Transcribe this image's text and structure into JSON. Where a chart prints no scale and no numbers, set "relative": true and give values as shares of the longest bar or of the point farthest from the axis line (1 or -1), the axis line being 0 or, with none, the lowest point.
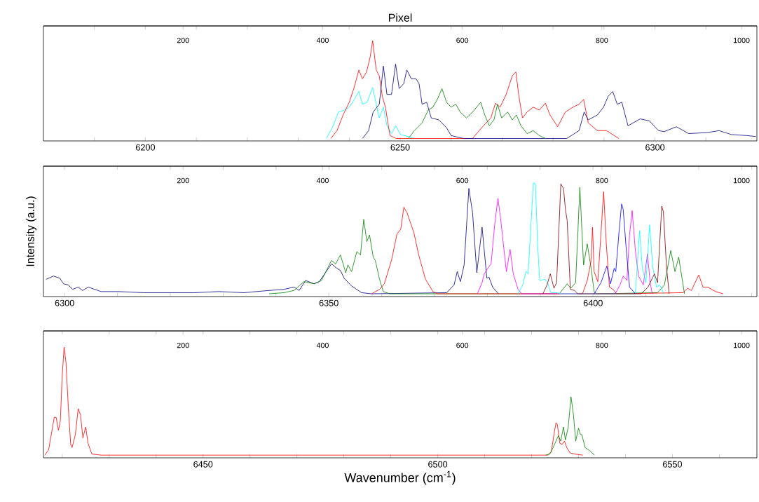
{
  "chart_data": [
    {
      "type": "line",
      "relative": true,
      "x2label": "Pixel",
      "xlim": [
        6180,
        6320
      ],
      "xticks": [
        {
          "value": 6190,
          "label": null
        },
        6200,
        {
          "value": 6210,
          "label": null
        },
        {
          "value": 6220,
          "label": null
        },
        {
          "value": 6230,
          "label": null
        },
        {
          "value": 6240,
          "label": null
        },
        6250,
        {
          "value": 6260,
          "label": null
        },
        {
          "value": 6270,
          "label": null
        },
        {
          "value": 6280,
          "label": null
        },
        {
          "value": 6290,
          "label": null
        },
        6300,
        {
          "value": 6310,
          "label": null
        }
      ],
      "x2lim": [
        0,
        1022
      ],
      "x2ticks": [
        200,
        400,
        600,
        800,
        1000
      ],
      "series": [
        {
          "color": "#00ffff",
          "x": [
            6235.5,
            6236.7,
            6237.9,
            6239.1,
            6240.0,
            6240.9,
            6241.9,
            6242.6,
            6243.5,
            6244.6,
            6245.3,
            6245.9,
            6246.7,
            6247.4,
            6248.3,
            6249.1,
            6250.1,
            6251.6,
            6252.8
          ],
          "values": [
            0,
            0.11,
            0.27,
            0.29,
            0.32,
            0.39,
            0.48,
            0.35,
            0.37,
            0.52,
            0.35,
            0.21,
            0.32,
            0.13,
            0.05,
            0.13,
            0.04,
            0.02,
            0
          ]
        },
        {
          "color": "#ff0000",
          "x": [
            6236.4,
            6237.6,
            6238.8,
            6240.0,
            6240.9,
            6241.9,
            6242.6,
            6243.4,
            6244.1,
            6244.6,
            6245.3,
            6245.9,
            6246.5,
            6247.1,
            6248.0,
            6249.2,
            6264.2,
            6266.0,
            6267.8,
            6268.7,
            6269.6,
            6270.8,
            6272.0,
            6272.7,
            6273.3,
            6274.0,
            6274.9,
            6276.1,
            6277.3,
            6278.5,
            6279.4,
            6280.9,
            6282.4,
            6283.9,
            6285.1,
            6286.0,
            6286.9,
            6288.7,
            6290.5,
            6292.9
          ],
          "values": [
            0,
            0.08,
            0.24,
            0.37,
            0.51,
            0.7,
            0.61,
            0.68,
            0.83,
            1,
            0.7,
            0.64,
            0.43,
            0.32,
            0.03,
            0,
            0,
            0.11,
            0.21,
            0.36,
            0.32,
            0.45,
            0.64,
            0.68,
            0.43,
            0.21,
            0.27,
            0.32,
            0.29,
            0.36,
            0.24,
            0.12,
            0.27,
            0.32,
            0.35,
            0.4,
            0.16,
            0.08,
            0.08,
            0
          ]
        },
        {
          "color": "#000080",
          "x": [
            6242.6,
            6243.8,
            6244.7,
            6245.9,
            6246.7,
            6247.4,
            6248.3,
            6249.1,
            6249.8,
            6250.7,
            6251.3,
            6252.2,
            6253.1,
            6253.7,
            6254.3,
            6255.2,
            6256.1,
            6257.6,
            6259.1,
            6260.0,
            6262.4,
            6282.7,
            6285.1,
            6286.1,
            6286.9,
            6288.7,
            6289.9,
            6290.8,
            6291.7,
            6292.6,
            6293.5,
            6294.7,
            6297.1,
            6298.9,
            6300.7,
            6301.8,
            6304.2,
            6306.6,
            6310.2,
            6312.6,
            6315.0,
            6318.0,
            6319.8
          ],
          "values": [
            0,
            0.08,
            0.27,
            0.35,
            0.74,
            0.45,
            0.45,
            0.76,
            0.51,
            0.56,
            0.7,
            0.61,
            0.61,
            0.56,
            0.35,
            0.37,
            0.21,
            0.19,
            0.11,
            0.03,
            0,
            0,
            0.08,
            0.27,
            0.19,
            0.24,
            0.32,
            0.43,
            0.48,
            0.35,
            0.37,
            0.13,
            0.2,
            0.18,
            0.08,
            0.07,
            0.12,
            0.05,
            0.06,
            0.08,
            0.04,
            0.03,
            0.02
          ]
        },
        {
          "color": "#008000",
          "x": [
            6251.6,
            6252.8,
            6254.3,
            6255.5,
            6256.4,
            6257.3,
            6258.2,
            6259.1,
            6260.0,
            6260.9,
            6261.8,
            6263.0,
            6264.2,
            6265.8,
            6266.6,
            6267.5,
            6268.4,
            6269.1,
            6269.9,
            6271.1,
            6272.0,
            6272.8,
            6273.7,
            6274.9,
            6276.1,
            6277.3,
            6278.5
          ],
          "values": [
            0,
            0.08,
            0.16,
            0.29,
            0.32,
            0.4,
            0.51,
            0.37,
            0.32,
            0.35,
            0.27,
            0.21,
            0.27,
            0.37,
            0.24,
            0.13,
            0.19,
            0.35,
            0.21,
            0.27,
            0.19,
            0.24,
            0.13,
            0.05,
            0.08,
            0.03,
            0
          ]
        }
      ]
    },
    {
      "type": "line",
      "relative": true,
      "ylabel": "Intensity (a.u.)",
      "xlim": [
        6296,
        6431
      ],
      "xticks": [
        6300,
        {
          "value": 6310,
          "label": null
        },
        {
          "value": 6320,
          "label": null
        },
        {
          "value": 6330,
          "label": null
        },
        {
          "value": 6340,
          "label": null
        },
        6350,
        {
          "value": 6360,
          "label": null
        },
        {
          "value": 6370,
          "label": null
        },
        {
          "value": 6380,
          "label": null
        },
        {
          "value": 6390,
          "label": null
        },
        6400,
        {
          "value": 6410,
          "label": null
        },
        {
          "value": 6420,
          "label": null
        },
        {
          "value": 6430,
          "label": null
        }
      ],
      "x2lim": [
        0,
        1022
      ],
      "x2ticks": [
        200,
        400,
        600,
        800,
        1000
      ],
      "series": [
        {
          "color": "#000080",
          "x": [
            6296.5,
            6297.9,
            6299.1,
            6299.8,
            6300.7,
            6301.5,
            6302.6,
            6303.4,
            6304.5,
            6306.9,
            6310.2,
            6315.0,
            6319.7,
            6324.5,
            6329.2,
            6333.9,
            6338.7,
            6341.5,
            6343.4,
            6344.4,
            6345.6,
            6347.2,
            6348.2,
            6350.5,
            6351.5,
            6352.2,
            6352.9,
            6354.3,
            6356.2,
            6358.1,
            6372.3,
            6373.7,
            6374.3,
            6374.9,
            6375.6,
            6376.5,
            6377.2,
            6378.0,
            6379.0,
            6379.9,
            6380.3,
            6381.0,
            6382.1
          ],
          "values": [
            0.13,
            0.16,
            0.14,
            0.09,
            0.08,
            0.04,
            0.06,
            0.03,
            0.06,
            0.02,
            0.02,
            0.01,
            0.01,
            0.01,
            0.02,
            0.01,
            0.03,
            0.04,
            0.06,
            0.03,
            0.12,
            0.09,
            0.11,
            0.27,
            0.23,
            0.21,
            0.14,
            0.07,
            0.01,
            0,
            0.01,
            0.08,
            0.2,
            0.11,
            0.26,
            0.95,
            0.73,
            0.19,
            0.6,
            0.14,
            0.15,
            0.06,
            0
          ]
        },
        {
          "color": "#008000",
          "x": [
            6338.7,
            6341.5,
            6343.4,
            6345.3,
            6347.2,
            6348.6,
            6350.5,
            6351.3,
            6352.2,
            6353.2,
            6353.6,
            6354.3,
            6355.3,
            6356.0,
            6356.6,
            6357.2,
            6357.7,
            6358.4,
            6358.8,
            6359.6,
            6360.3,
            6361.5,
            6393.6,
            6395.1,
            6395.8,
            6396.7,
            6397.5,
            6398.2,
            6398.9,
            6399.6,
            6400.2,
            6400.7,
            6412.2,
            6413.5,
            6414.7,
            6415.5,
            6416.2,
            6417.3
          ],
          "values": [
            0,
            0.01,
            0.03,
            0.11,
            0.09,
            0.12,
            0.3,
            0.27,
            0.35,
            0.19,
            0.26,
            0.2,
            0.38,
            0.35,
            0.67,
            0.47,
            0.53,
            0.33,
            0.3,
            0.13,
            0.02,
            0,
            0,
            0.09,
            0.05,
            0.1,
            0.96,
            0.26,
            0.45,
            0.24,
            0.02,
            0,
            0.01,
            0.08,
            0.39,
            0.2,
            0.33,
            0
          ]
        },
        {
          "color": "#ff0000",
          "x": [
            6358.1,
            6359.6,
            6360.5,
            6361.9,
            6362.9,
            6363.6,
            6364.2,
            6364.8,
            6366.1,
            6367.0,
            6368.3,
            6369.7,
            6370.6,
            6398.0,
            6398.9,
            6399.6,
            6399.9,
            6400.2,
            6400.9,
            6401.5,
            6402.0,
            6402.5,
            6403.1,
            6403.8,
            6404.4,
            6417.0,
            6417.9,
            6418.6,
            6420.0,
            6420.8,
            6421.7,
            6423.2,
            6424.6
          ],
          "values": [
            0,
            0.04,
            0.09,
            0.31,
            0.54,
            0.58,
            0.78,
            0.73,
            0.55,
            0.35,
            0.13,
            0.02,
            0,
            0,
            0.12,
            0.29,
            0.6,
            0.2,
            0.11,
            0.55,
            0.92,
            0.45,
            0.06,
            0.04,
            0,
            0.01,
            0.05,
            0.03,
            0.17,
            0.06,
            0.06,
            0.02,
            0
          ]
        },
        {
          "color": "#ff00ff",
          "x": [
            6378.1,
            6379.0,
            6379.4,
            6380.1,
            6380.7,
            6381.4,
            6382.0,
            6382.5,
            6383.0,
            6383.6,
            6384.3,
            6384.9,
            6385.8,
            6386.5,
            6404.2,
            6405.1,
            6405.7,
            6406.4,
            6406.9,
            6407.4,
            6408.0,
            6408.6,
            6409.5,
            6410.3,
            6410.8,
            6411.2
          ],
          "values": [
            0,
            0.1,
            0.18,
            0.23,
            0.27,
            0.63,
            0.86,
            0.68,
            0.46,
            0.2,
            0.4,
            0.18,
            0.04,
            0,
            0,
            0.08,
            0.16,
            0.12,
            0.53,
            0.75,
            0.39,
            0.16,
            0.08,
            0.36,
            0.1,
            0
          ]
        },
        {
          "color": "#00ffff",
          "x": [
            6385.8,
            6386.7,
            6387.3,
            6387.7,
            6388.3,
            6388.7,
            6389.1,
            6389.5,
            6389.9,
            6390.9,
            6391.4,
            6392.0,
            6393.1,
            6394.0,
            6408.0,
            6408.8,
            6409.3,
            6410.0,
            6410.7,
            6411.3,
            6412.0,
            6412.6,
            6413.4
          ],
          "values": [
            0,
            0.08,
            0.2,
            0.18,
            0.66,
            1,
            0.99,
            0.45,
            0.12,
            0.13,
            0.1,
            0.01,
            0.01,
            0,
            0,
            0.57,
            0.24,
            0.1,
            0.62,
            0.24,
            0.06,
            0.08,
            0
          ]
        },
        {
          "color": "#800000",
          "x": [
            6390.5,
            6391.3,
            6391.9,
            6392.6,
            6393.1,
            6393.9,
            6394.4,
            6394.8,
            6395.1,
            6395.7,
            6396.5,
            6397.1,
            6409.1,
            6410.4,
            6411.6,
            6412.2,
            6413.0,
            6413.3,
            6413.9,
            6414.4
          ],
          "values": [
            0,
            0.08,
            0.18,
            0.05,
            0.1,
            0.99,
            0.95,
            0.75,
            0.66,
            0.04,
            0.03,
            0,
            0,
            0.06,
            0.18,
            0.1,
            0.79,
            0.74,
            0.24,
            0
          ]
        },
        {
          "color": "#0000ff",
          "x": [
            6400.2,
            6401.5,
            6402.6,
            6403.3,
            6404.0,
            6404.3,
            6404.9,
            6405.4,
            6405.7,
            6406.2,
            6406.9,
            6408.0
          ],
          "values": [
            0,
            0.1,
            0.25,
            0.09,
            0.23,
            0.2,
            0.55,
            0.81,
            0.76,
            0.45,
            0.06,
            0
          ]
        }
      ]
    },
    {
      "type": "line",
      "relative": true,
      "xlabel": "Wavenumber (cm$^{-1}$)",
      "xlim": [
        6416,
        6568
      ],
      "xticks": [
        {
          "value": 6420,
          "label": null
        },
        {
          "value": 6430,
          "label": null
        },
        {
          "value": 6440,
          "label": null
        },
        6450,
        {
          "value": 6460,
          "label": null
        },
        {
          "value": 6470,
          "label": null
        },
        {
          "value": 6480,
          "label": null
        },
        {
          "value": 6490,
          "label": null
        },
        6500,
        {
          "value": 6510,
          "label": null
        },
        {
          "value": 6520,
          "label": null
        },
        {
          "value": 6530,
          "label": null
        },
        {
          "value": 6540,
          "label": null
        },
        6550,
        {
          "value": 6560,
          "label": null
        }
      ],
      "x2lim": [
        0,
        1022
      ],
      "x2ticks": [
        200,
        400,
        600,
        800,
        1000
      ],
      "series": [
        {
          "color": "#ff0000",
          "x": [
            6416.3,
            6417.1,
            6417.7,
            6418.3,
            6418.7,
            6419.2,
            6419.6,
            6420.0,
            6420.4,
            6420.8,
            6421.3,
            6421.8,
            6422.1,
            6422.8,
            6423.4,
            6423.9,
            6424.4,
            6425.0,
            6425.5,
            6426.3,
            6428.3,
            6523.4,
            6524.2,
            6524.8,
            6525.2,
            6525.5,
            6526.0,
            6526.5,
            6527.0,
            6527.5,
            6528.2,
            6529.2,
            6530.9
          ],
          "values": [
            0,
            0.05,
            0.2,
            0.35,
            0.35,
            0.23,
            0.32,
            0.74,
            1,
            0.86,
            0.44,
            0.1,
            0.07,
            0.19,
            0.43,
            0.37,
            0.16,
            0.26,
            0.11,
            0.01,
            0,
            0,
            0.03,
            0.2,
            0.3,
            0.28,
            0.11,
            0.1,
            0.13,
            0.07,
            0.02,
            0.01,
            0
          ]
        },
        {
          "color": "#008000",
          "x": [
            6523.0,
            6523.9,
            6524.9,
            6525.7,
            6526.2,
            6526.8,
            6527.2,
            6527.8,
            6528.4,
            6528.9,
            6529.4,
            6530.0,
            6530.4,
            6530.7,
            6531.4,
            6532.4,
            6533.4
          ],
          "values": [
            0,
            0.01,
            0.1,
            0.18,
            0.13,
            0.26,
            0.14,
            0.26,
            0.54,
            0.38,
            0.13,
            0.25,
            0.19,
            0.19,
            0.07,
            0.04,
            0
          ]
        }
      ]
    }
  ]
}
